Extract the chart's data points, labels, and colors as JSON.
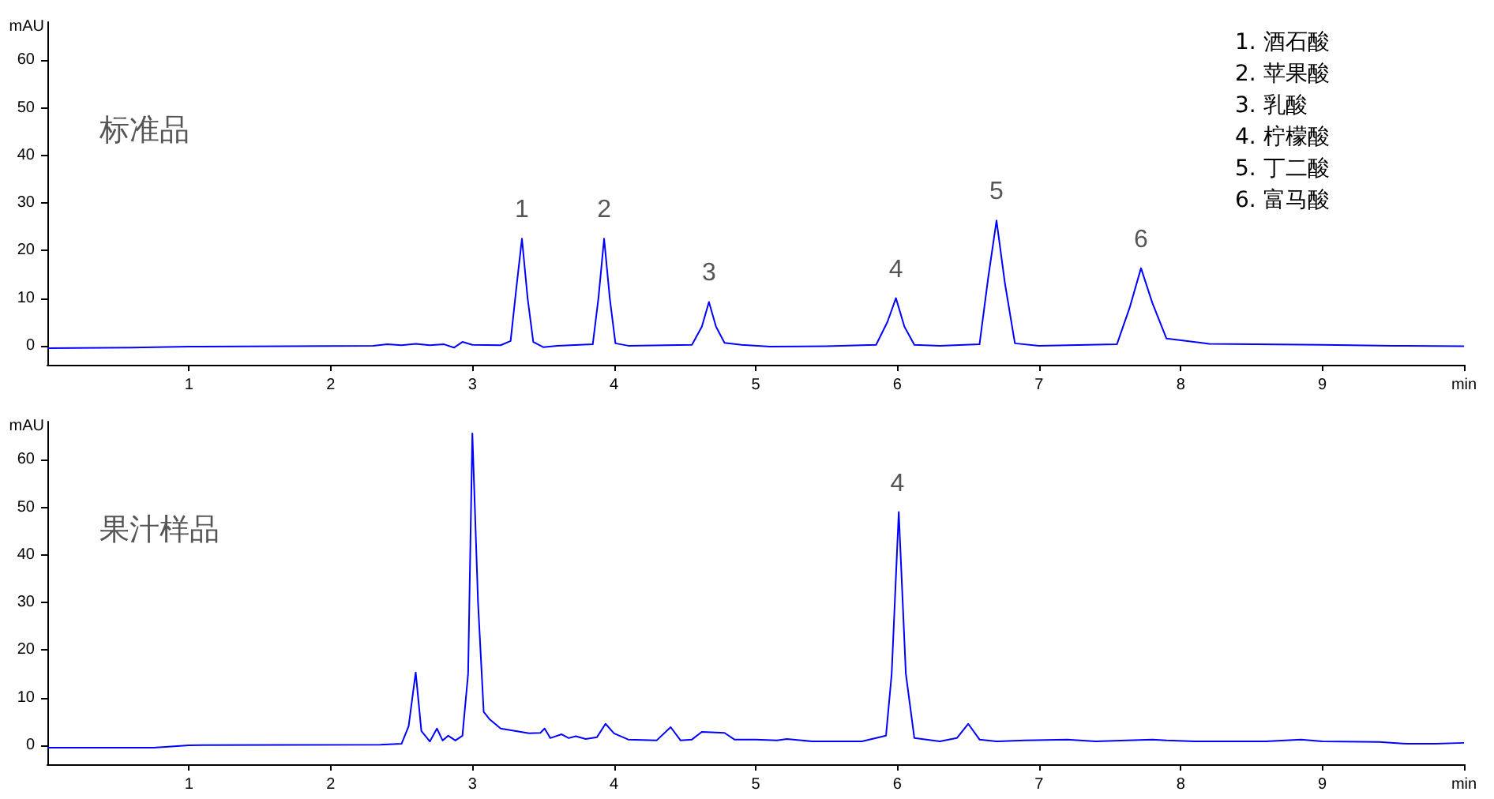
{
  "chart_data": [
    {
      "type": "line",
      "title": "标准品",
      "ylabel": "mAU",
      "xlim": [
        0,
        10
      ],
      "xticks": [
        1,
        2,
        3,
        4,
        5,
        6,
        7,
        8,
        9,
        {
          "value": 10,
          "label": "min"
        }
      ],
      "ylim": [
        -4,
        68
      ],
      "yticks": [
        0,
        10,
        20,
        30,
        40,
        50,
        60
      ],
      "series": [
        {
          "color": "#0000ff",
          "x": [
            0,
            0.6,
            1.0,
            1.7,
            2.3,
            2.4,
            2.5,
            2.6,
            2.7,
            2.8,
            2.87,
            2.93,
            3.0,
            3.2,
            3.27,
            3.31,
            3.35,
            3.39,
            3.43,
            3.5,
            3.6,
            3.85,
            3.89,
            3.93,
            3.97,
            4.01,
            4.1,
            4.55,
            4.62,
            4.67,
            4.72,
            4.78,
            4.9,
            5.1,
            5.5,
            5.85,
            5.93,
            5.99,
            6.05,
            6.12,
            6.3,
            6.58,
            6.64,
            6.7,
            6.76,
            6.83,
            7.0,
            7.55,
            7.64,
            7.72,
            7.8,
            7.9,
            8.2,
            9.0,
            9.5,
            10
          ],
          "values": [
            -0.5,
            -0.4,
            -0.2,
            -0.1,
            0,
            0.3,
            0.1,
            0.4,
            0.1,
            0.3,
            -0.4,
            0.8,
            0.2,
            0.1,
            1,
            12,
            22.5,
            10,
            0.8,
            -0.3,
            0,
            0.3,
            10,
            22.5,
            10,
            0.5,
            0,
            0.2,
            4,
            9.2,
            4,
            0.6,
            0.2,
            -0.2,
            -0.1,
            0.2,
            5,
            10,
            4,
            0.2,
            0,
            0.3,
            14,
            26.3,
            13,
            0.5,
            0,
            0.3,
            8,
            16.3,
            9,
            1.5,
            0.4,
            0.2,
            0,
            -0.1
          ]
        }
      ],
      "annotations": [
        {
          "text": "1",
          "x": 3.35,
          "y": 22.5
        },
        {
          "text": "2",
          "x": 3.93,
          "y": 22.5
        },
        {
          "text": "3",
          "x": 4.67,
          "y": 9.2
        },
        {
          "text": "4",
          "x": 5.99,
          "y": 10
        },
        {
          "text": "5",
          "x": 6.7,
          "y": 26.3
        },
        {
          "text": "6",
          "x": 7.72,
          "y": 16.3
        },
        "1. 酒石酸",
        "2. 苹果酸",
        "3. 乳酸",
        "4. 柠檬酸",
        "5. 丁二酸",
        "6. 富马酸"
      ]
    },
    {
      "type": "line",
      "title": "果汁样品",
      "ylabel": "mAU",
      "xlim": [
        0,
        10
      ],
      "xticks": [
        1,
        2,
        3,
        4,
        5,
        6,
        7,
        8,
        9,
        {
          "value": 10,
          "label": "min"
        }
      ],
      "ylim": [
        -4,
        68
      ],
      "yticks": [
        0,
        10,
        20,
        30,
        40,
        50,
        60
      ],
      "series": [
        {
          "color": "#0000ff",
          "x": [
            0,
            0.75,
            1.0,
            2.35,
            2.5,
            2.55,
            2.6,
            2.64,
            2.7,
            2.75,
            2.79,
            2.83,
            2.88,
            2.93,
            2.97,
            3.0,
            3.04,
            3.08,
            3.12,
            3.2,
            3.3,
            3.4,
            3.48,
            3.51,
            3.55,
            3.63,
            3.68,
            3.73,
            3.8,
            3.88,
            3.94,
            4.0,
            4.1,
            4.3,
            4.4,
            4.47,
            4.55,
            4.62,
            4.78,
            4.85,
            5.0,
            5.15,
            5.22,
            5.4,
            5.75,
            5.85,
            5.92,
            5.96,
            6.01,
            6.06,
            6.12,
            6.3,
            6.42,
            6.5,
            6.58,
            6.7,
            6.9,
            7.2,
            7.4,
            7.8,
            7.9,
            8.1,
            8.6,
            8.85,
            9.0,
            9.4,
            9.6,
            9.8,
            10
          ],
          "values": [
            -0.5,
            -0.5,
            0,
            0.1,
            0.3,
            4,
            15.3,
            3,
            0.8,
            3.5,
            1,
            2,
            1,
            2,
            15,
            65.5,
            30,
            7,
            5.5,
            3.5,
            3,
            2.5,
            2.6,
            3.5,
            1.5,
            2.3,
            1.5,
            1.9,
            1.3,
            1.7,
            4.5,
            2.5,
            1.2,
            1,
            3.8,
            1,
            1.2,
            2.8,
            2.6,
            1.2,
            1.2,
            1,
            1.3,
            0.8,
            0.8,
            1.5,
            2,
            15,
            49,
            15,
            1.5,
            0.8,
            1.5,
            4.5,
            1.2,
            0.8,
            1,
            1.2,
            0.8,
            1.2,
            1,
            0.8,
            0.8,
            1.2,
            0.8,
            0.7,
            0.3,
            0.3,
            0.5
          ]
        }
      ],
      "annotations": [
        {
          "text": "4",
          "x": 6.0,
          "y": 49
        }
      ]
    }
  ]
}
